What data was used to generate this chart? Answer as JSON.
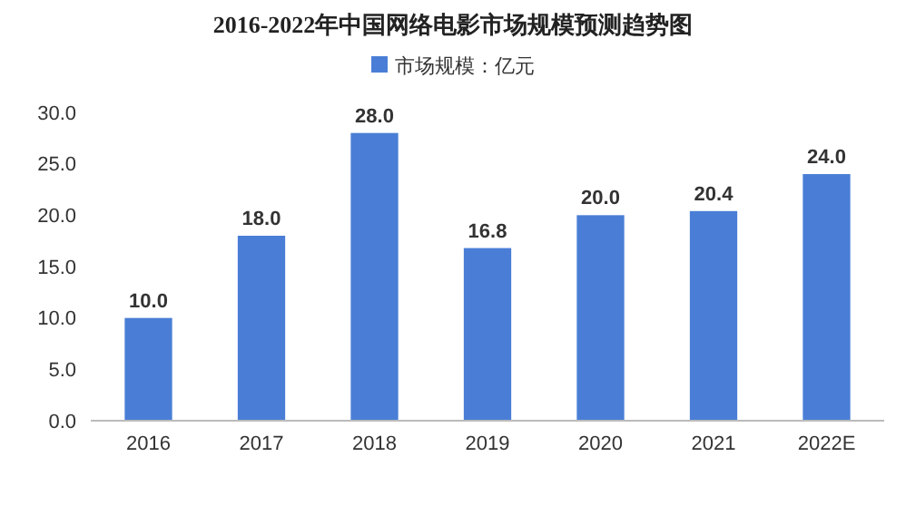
{
  "chart_data": {
    "type": "bar",
    "title": "2016-2022年中国网络电影市场规模预测趋势图",
    "categories": [
      "2016",
      "2017",
      "2018",
      "2019",
      "2020",
      "2021",
      "2022E"
    ],
    "series": [
      {
        "name": "市场规模：亿元",
        "color": "#4a7ed6",
        "values": [
          10.0,
          18.0,
          28.0,
          16.8,
          20.0,
          20.4,
          24.0
        ],
        "value_labels": [
          "10.0",
          "18.0",
          "28.0",
          "16.8",
          "20.0",
          "20.4",
          "24.0"
        ]
      }
    ],
    "ylim": [
      0,
      30
    ],
    "yticks": [
      {
        "value": 0,
        "label": "0.0"
      },
      {
        "value": 5,
        "label": "5.0"
      },
      {
        "value": 10,
        "label": "10.0"
      },
      {
        "value": 15,
        "label": "15.0"
      },
      {
        "value": 20,
        "label": "20.0"
      },
      {
        "value": 25,
        "label": "25.0"
      },
      {
        "value": 30,
        "label": "30.0"
      }
    ],
    "grid": false,
    "legend": "top"
  }
}
